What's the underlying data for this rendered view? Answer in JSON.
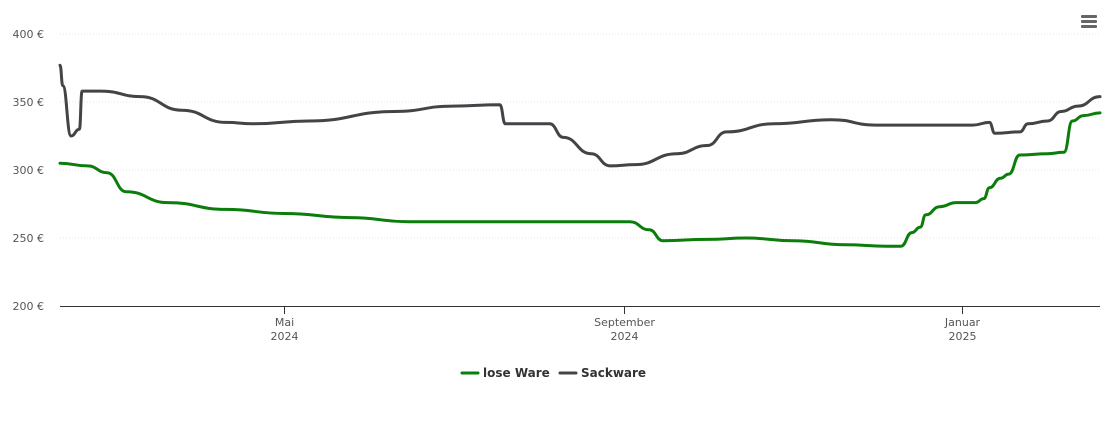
{
  "chart_data": {
    "type": "line",
    "title": "",
    "xlabel": "",
    "ylabel": "",
    "ylim": [
      200,
      400
    ],
    "y_ticks": [
      {
        "value": 400,
        "label": "400 €"
      },
      {
        "value": 350,
        "label": "350 €"
      },
      {
        "value": 300,
        "label": "300 €"
      },
      {
        "value": 250,
        "label": "250 €"
      },
      {
        "value": 200,
        "label": "200 €"
      }
    ],
    "x_range": [
      "2024-02-10",
      "2025-02-20"
    ],
    "x_ticks": [
      {
        "date": "2024-05-01",
        "month": "Mai",
        "year": "2024"
      },
      {
        "date": "2024-09-01",
        "month": "September",
        "year": "2024"
      },
      {
        "date": "2025-01-01",
        "month": "Januar",
        "year": "2025"
      }
    ],
    "grid": true,
    "legend_position": "bottom-center",
    "series": [
      {
        "name": "lose Ware",
        "color": "#0a7d0a",
        "points": [
          [
            "2024-02-10",
            305
          ],
          [
            "2024-02-20",
            303
          ],
          [
            "2024-02-27",
            298
          ],
          [
            "2024-03-05",
            284
          ],
          [
            "2024-03-20",
            276
          ],
          [
            "2024-04-10",
            271
          ],
          [
            "2024-05-01",
            268
          ],
          [
            "2024-05-25",
            265
          ],
          [
            "2024-06-15",
            262
          ],
          [
            "2024-07-15",
            262
          ],
          [
            "2024-08-15",
            262
          ],
          [
            "2024-09-03",
            262
          ],
          [
            "2024-09-10",
            256
          ],
          [
            "2024-09-15",
            248
          ],
          [
            "2024-10-01",
            249
          ],
          [
            "2024-10-15",
            250
          ],
          [
            "2024-11-01",
            248
          ],
          [
            "2024-11-20",
            245
          ],
          [
            "2024-12-05",
            244
          ],
          [
            "2024-12-10",
            244
          ],
          [
            "2024-12-14",
            254
          ],
          [
            "2024-12-17",
            258
          ],
          [
            "2024-12-19",
            267
          ],
          [
            "2024-12-24",
            273
          ],
          [
            "2024-12-30",
            276
          ],
          [
            "2025-01-06",
            276
          ],
          [
            "2025-01-09",
            279
          ],
          [
            "2025-01-11",
            287
          ],
          [
            "2025-01-15",
            294
          ],
          [
            "2025-01-18",
            297
          ],
          [
            "2025-01-22",
            311
          ],
          [
            "2025-02-01",
            312
          ],
          [
            "2025-02-07",
            313
          ],
          [
            "2025-02-10",
            336
          ],
          [
            "2025-02-14",
            340
          ],
          [
            "2025-02-20",
            342
          ]
        ]
      },
      {
        "name": "Sackware",
        "color": "#434348",
        "points": [
          [
            "2024-02-10",
            377
          ],
          [
            "2024-02-11",
            362
          ],
          [
            "2024-02-14",
            325
          ],
          [
            "2024-02-17",
            330
          ],
          [
            "2024-02-18",
            358
          ],
          [
            "2024-02-25",
            358
          ],
          [
            "2024-03-10",
            354
          ],
          [
            "2024-03-25",
            344
          ],
          [
            "2024-04-10",
            335
          ],
          [
            "2024-04-20",
            334
          ],
          [
            "2024-05-10",
            336
          ],
          [
            "2024-06-10",
            343
          ],
          [
            "2024-07-01",
            347
          ],
          [
            "2024-07-18",
            348
          ],
          [
            "2024-07-20",
            334
          ],
          [
            "2024-08-05",
            334
          ],
          [
            "2024-08-10",
            324
          ],
          [
            "2024-08-20",
            312
          ],
          [
            "2024-08-27",
            303
          ],
          [
            "2024-09-05",
            304
          ],
          [
            "2024-09-20",
            312
          ],
          [
            "2024-10-01",
            318
          ],
          [
            "2024-10-08",
            328
          ],
          [
            "2024-10-25",
            334
          ],
          [
            "2024-11-15",
            337
          ],
          [
            "2024-12-01",
            333
          ],
          [
            "2024-12-20",
            333
          ],
          [
            "2025-01-05",
            333
          ],
          [
            "2025-01-11",
            335
          ],
          [
            "2025-01-13",
            327
          ],
          [
            "2025-01-22",
            328
          ],
          [
            "2025-01-25",
            334
          ],
          [
            "2025-02-01",
            336
          ],
          [
            "2025-02-06",
            343
          ],
          [
            "2025-02-12",
            347
          ],
          [
            "2025-02-20",
            354
          ]
        ]
      }
    ]
  },
  "legend": {
    "items": [
      {
        "label": "lose Ware",
        "color": "#0a7d0a"
      },
      {
        "label": "Sackware",
        "color": "#434348"
      }
    ]
  },
  "menu": {
    "icon": "hamburger-menu-icon"
  }
}
